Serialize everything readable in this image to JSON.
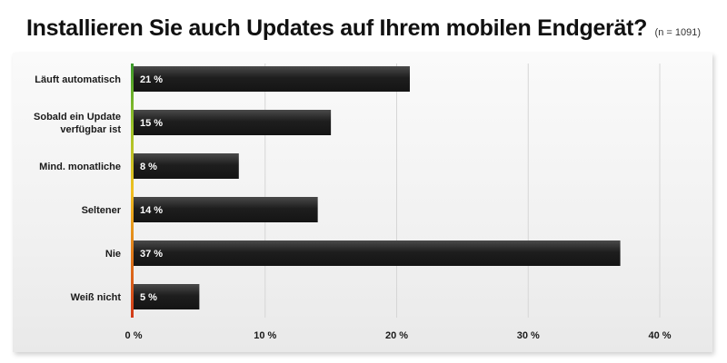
{
  "title": "Installieren Sie auch Updates auf Ihrem mobilen Endgerät?",
  "subtitle": "(n = 1091)",
  "chart_data": {
    "type": "bar",
    "orientation": "horizontal",
    "categories": [
      [
        "Läuft automatisch"
      ],
      [
        "Sobald ein Update",
        "verfügbar ist"
      ],
      [
        "Mind. monatliche"
      ],
      [
        "Seltener"
      ],
      [
        "Nie"
      ],
      [
        "Weiß nicht"
      ]
    ],
    "values": [
      21,
      15,
      8,
      14,
      37,
      5
    ],
    "data_labels": [
      "21 %",
      "15 %",
      "8 %",
      "14 %",
      "37 %",
      "5 %"
    ],
    "xlim": [
      0,
      40
    ],
    "x_ticks": [
      0,
      10,
      20,
      30,
      40
    ],
    "x_tick_labels": [
      "0 %",
      "10 %",
      "20 %",
      "30 %",
      "40 %"
    ],
    "grid": true,
    "bar_color": "#222222",
    "axis_gradient": [
      "#3a9a2a",
      "#9cc42a",
      "#f0c020",
      "#e07a1a",
      "#d23a1a"
    ]
  }
}
